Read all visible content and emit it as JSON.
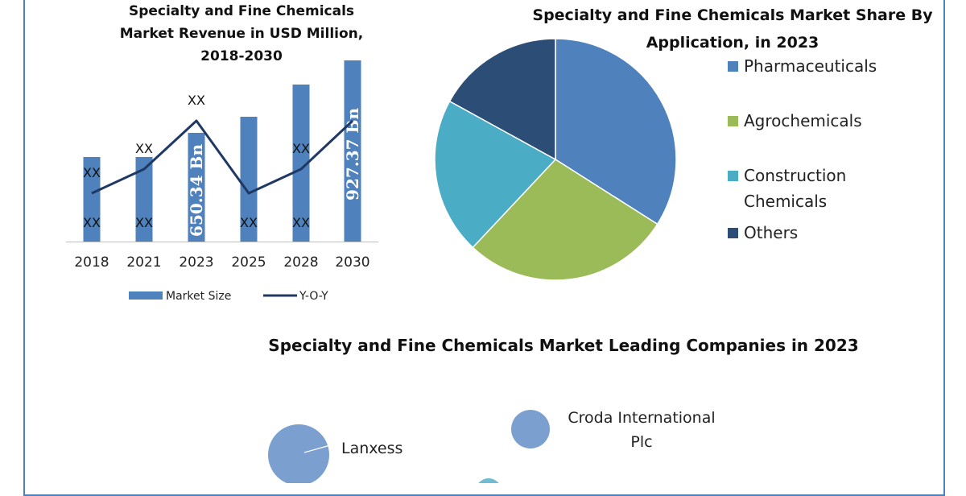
{
  "chart_data": [
    {
      "type": "bar",
      "title": "Specialty and Fine Chemicals Market Revenue in USD Million, 2018-2030",
      "title_lines": [
        "Specialty and Fine Chemicals",
        "Market Revenue in USD Million,",
        "2018-2030"
      ],
      "categories": [
        "2018",
        "2021",
        "2023",
        "2025",
        "2028",
        "2030"
      ],
      "series": [
        {
          "name": "Market Size",
          "type": "bar",
          "color": "#4f81bd",
          "values": [
            105,
            105,
            135,
            155,
            195,
            225
          ],
          "labels": [
            "XX",
            "XX",
            "650.34 Bn",
            "XX",
            "XX",
            "927.37 Bn"
          ]
        },
        {
          "name": "Y-O-Y",
          "type": "line",
          "color": "#1f3864",
          "values": [
            60,
            90,
            150,
            60,
            90,
            150
          ],
          "labels": [
            "XX",
            "XX",
            "XX",
            "",
            "XX",
            ""
          ]
        }
      ],
      "ylim": [
        0,
        230
      ],
      "grid": false,
      "legend_position": "bottom"
    },
    {
      "type": "pie",
      "title": "Specialty and Fine Chemicals Market Share By Application, in 2023",
      "title_lines": [
        "Specialty and Fine Chemicals Market Share By",
        "Application, in 2023"
      ],
      "slices": [
        {
          "label": "Pharmaceuticals",
          "value": 34,
          "color": "#4f81bd"
        },
        {
          "label": "Agrochemicals",
          "value": 28,
          "color": "#9bbb59"
        },
        {
          "label": "Construction Chemicals",
          "value": 21,
          "color": "#4bacc6"
        },
        {
          "label": "Others",
          "value": 17,
          "color": "#2c4d75"
        }
      ],
      "legend_lines": [
        [
          "Pharmaceuticals"
        ],
        [
          "Agrochemicals"
        ],
        [
          "Construction",
          "Chemicals"
        ],
        [
          "Others"
        ]
      ],
      "legend_position": "right"
    },
    {
      "type": "scatter",
      "title": "Specialty and Fine Chemicals Market Leading Companies in 2023",
      "points": [
        {
          "label": "Lanxess",
          "label_lines": [
            "Lanxess"
          ],
          "color": "#7ba0d0"
        },
        {
          "label": "Croda International Plc",
          "label_lines": [
            "Croda International",
            "Plc"
          ],
          "color": "#7ba0d0"
        },
        {
          "label": "",
          "label_lines": [],
          "color": "#4bacc6"
        }
      ]
    }
  ],
  "colors": {
    "frame": "#4f81bd"
  }
}
